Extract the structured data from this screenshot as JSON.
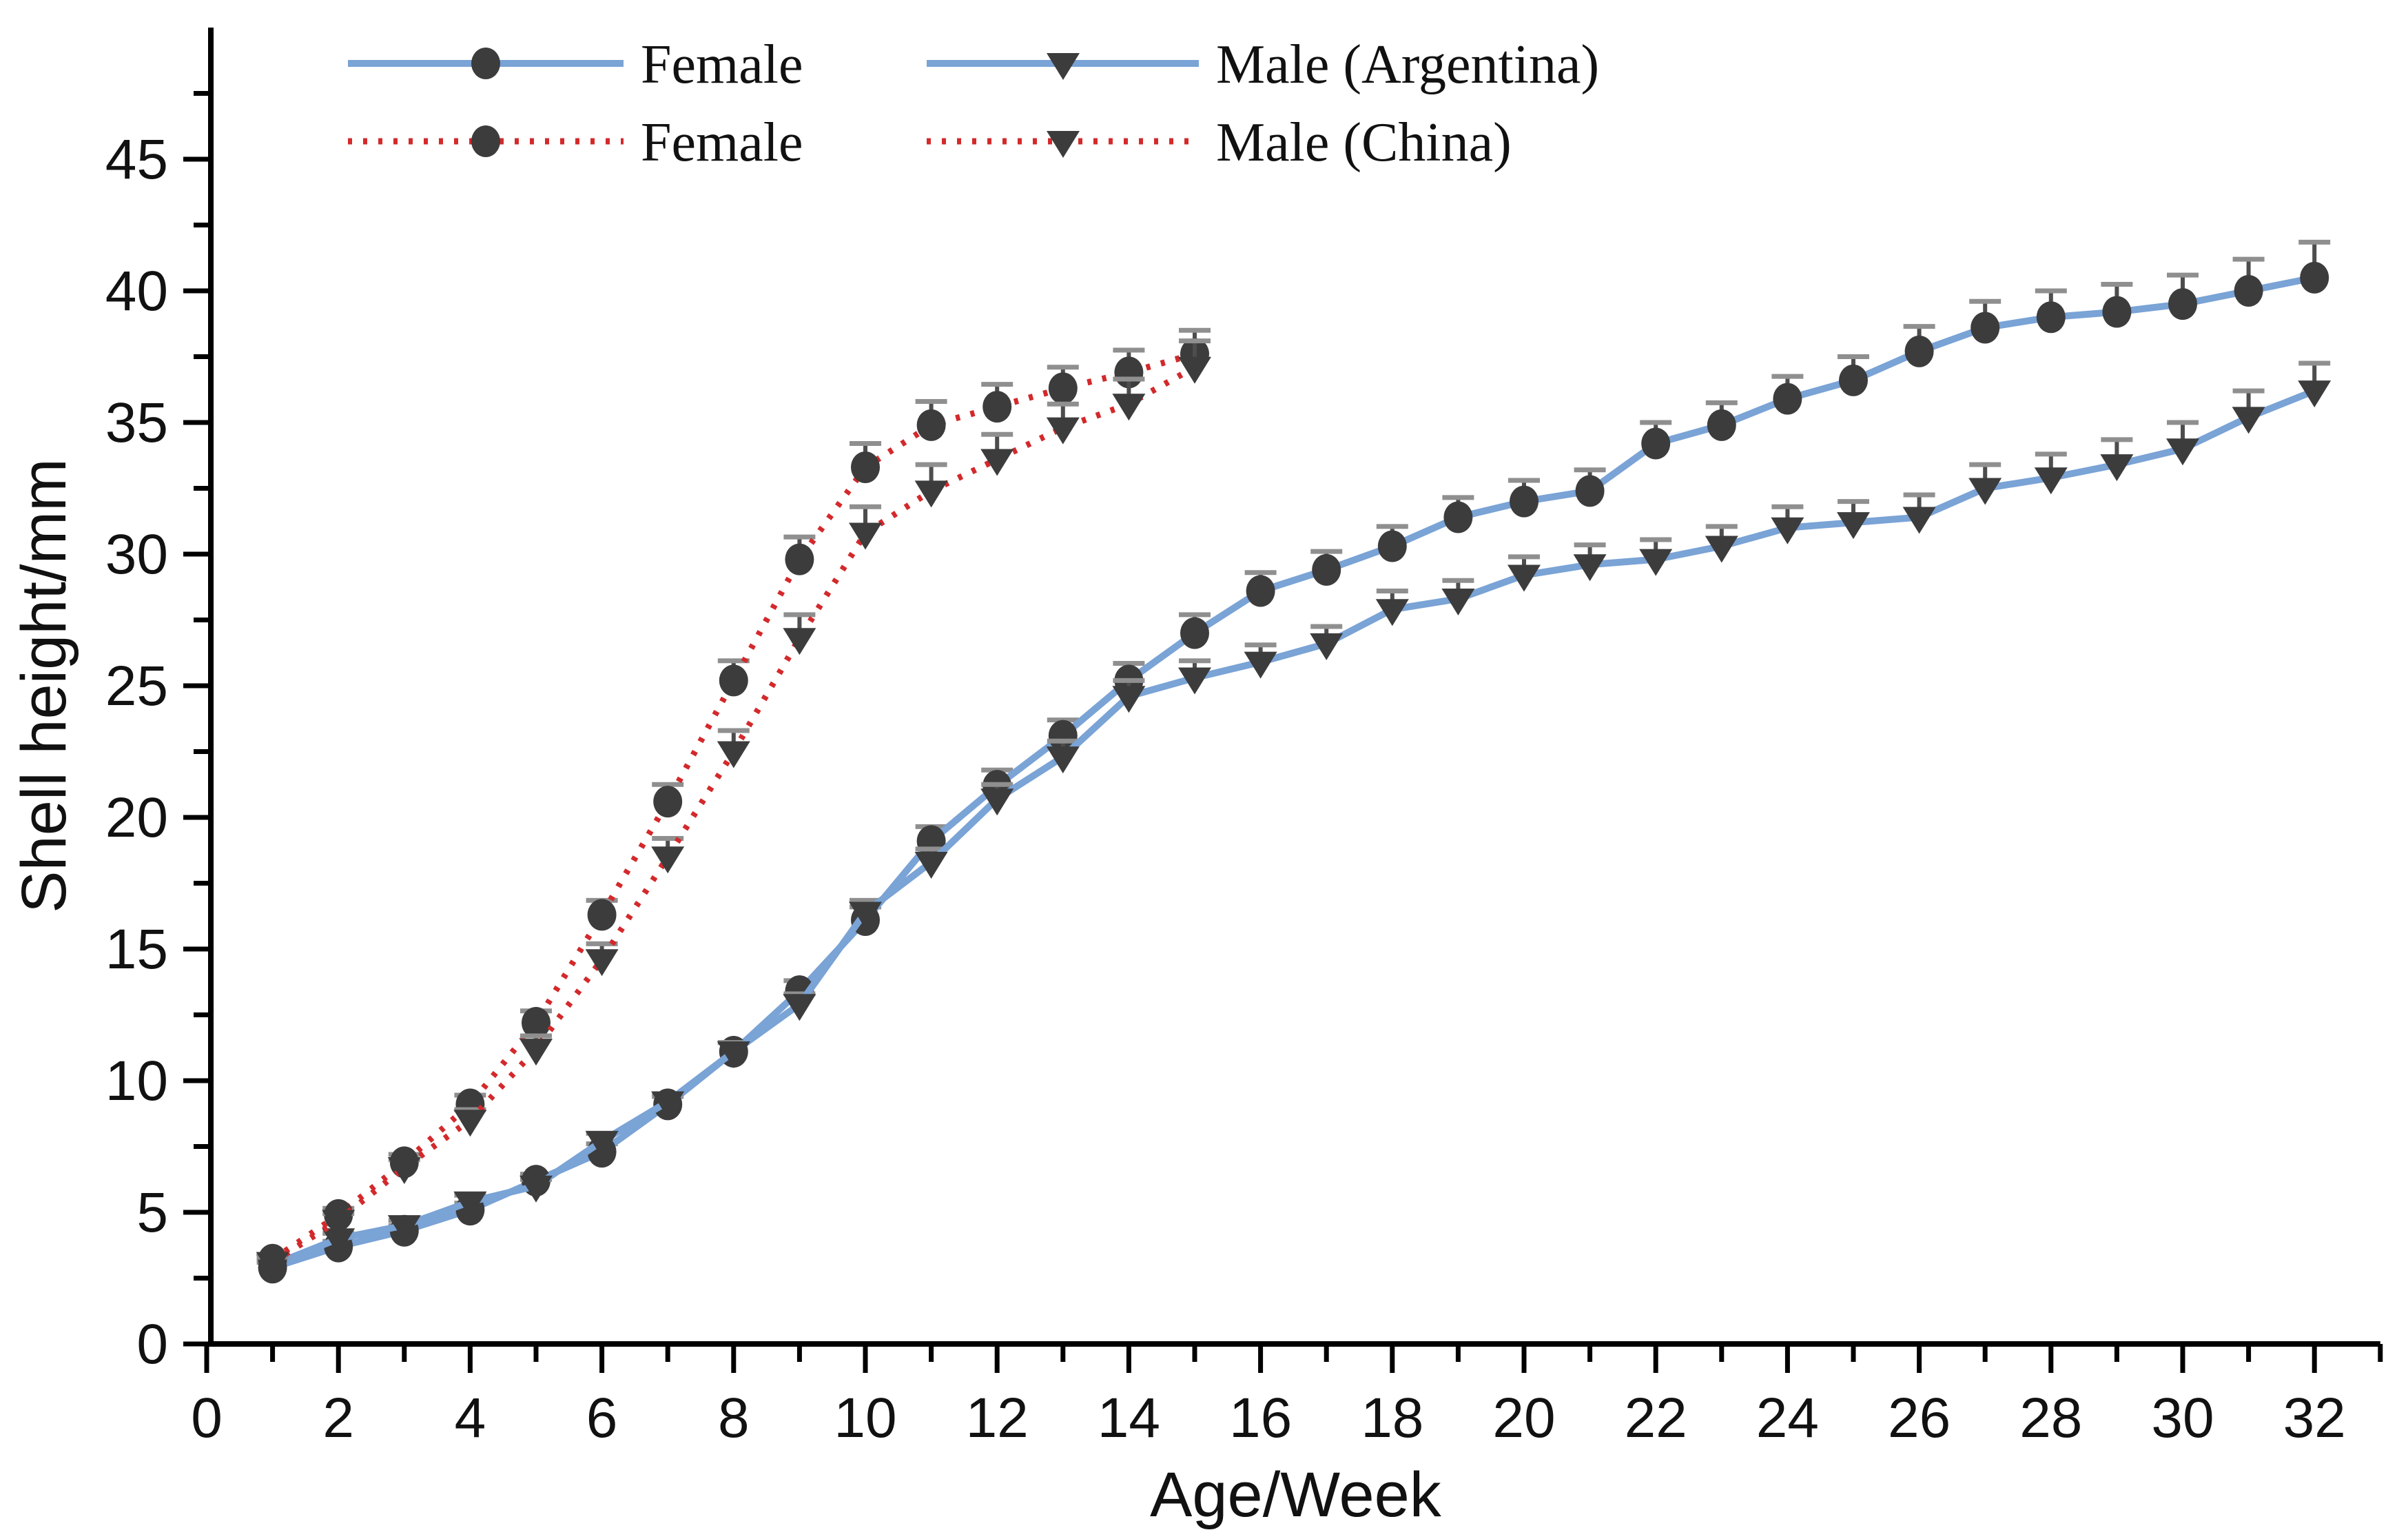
{
  "chart_data": {
    "type": "line",
    "title": "",
    "xlabel": "Age/Week",
    "ylabel": "Shell height/mm",
    "xlim": [
      0,
      33
    ],
    "ylim": [
      0,
      50
    ],
    "x_major_tick_labels": [
      "0",
      "2",
      "4",
      "6",
      "8",
      "10",
      "12",
      "14",
      "16",
      "18",
      "20",
      "22",
      "24",
      "26",
      "28",
      "30",
      "32"
    ],
    "x_major_tick_values": [
      0,
      2,
      4,
      6,
      8,
      10,
      12,
      14,
      16,
      18,
      20,
      22,
      24,
      26,
      28,
      30,
      32
    ],
    "x_minor_tick_values": [
      1,
      3,
      5,
      7,
      9,
      11,
      13,
      15,
      17,
      19,
      21,
      23,
      25,
      27,
      29,
      31,
      33
    ],
    "y_major_tick_labels": [
      "0",
      "5",
      "10",
      "15",
      "20",
      "25",
      "30",
      "35",
      "40",
      "45"
    ],
    "y_major_tick_values": [
      0,
      5,
      10,
      15,
      20,
      25,
      30,
      35,
      40,
      45
    ],
    "y_minor_tick_values": [
      2.5,
      7.5,
      12.5,
      17.5,
      22.5,
      27.5,
      32.5,
      37.5,
      42.5,
      47.5
    ],
    "grid": "off",
    "legend_position": "top-left-inside",
    "colors": {
      "argentina_line": "#7aa3d6",
      "china_line": "#d3292b",
      "marker": "#3c3c3c",
      "axis": "#000000",
      "error_stem": "#4d4d4d",
      "error_cap": "#8f8f8f"
    },
    "series": [
      {
        "name": "female-argentina",
        "legend_label": "Female",
        "group": "Argentina",
        "color": "#7aa3d6",
        "line_style": "solid",
        "marker": "circle",
        "x": [
          1,
          2,
          3,
          4,
          5,
          6,
          7,
          8,
          9,
          10,
          11,
          12,
          13,
          14,
          15,
          16,
          17,
          18,
          19,
          20,
          21,
          22,
          23,
          24,
          25,
          26,
          27,
          28,
          29,
          30,
          31,
          32
        ],
        "y": [
          2.9,
          3.7,
          4.3,
          5.1,
          6.2,
          7.3,
          9.1,
          11.1,
          13.4,
          16.1,
          19.1,
          21.2,
          23.1,
          25.2,
          27.0,
          28.6,
          29.4,
          30.3,
          31.4,
          32.0,
          32.4,
          34.2,
          34.9,
          35.9,
          36.6,
          37.7,
          38.6,
          39.0,
          39.2,
          39.5,
          40.0,
          40.5
        ],
        "err_up": [
          0.2,
          0.2,
          0.2,
          0.25,
          0.25,
          0.3,
          0.3,
          0.35,
          0.4,
          0.5,
          0.55,
          0.6,
          0.6,
          0.65,
          0.7,
          0.7,
          0.7,
          0.75,
          0.75,
          0.8,
          0.8,
          0.8,
          0.85,
          0.85,
          0.9,
          0.95,
          1.0,
          1.0,
          1.05,
          1.1,
          1.2,
          1.35
        ]
      },
      {
        "name": "male-argentina",
        "legend_label": "Male (Argentina)",
        "group": "Argentina",
        "color": "#7aa3d6",
        "line_style": "solid",
        "marker": "triangle-down",
        "x": [
          1,
          2,
          3,
          4,
          5,
          6,
          7,
          8,
          9,
          10,
          11,
          12,
          13,
          14,
          15,
          16,
          17,
          18,
          19,
          20,
          21,
          22,
          23,
          24,
          25,
          26,
          27,
          28,
          29,
          30,
          31,
          32
        ],
        "y": [
          3.0,
          4.0,
          4.5,
          5.4,
          6.0,
          7.7,
          9.2,
          11.1,
          12.9,
          16.4,
          18.3,
          20.7,
          22.3,
          24.6,
          25.3,
          25.9,
          26.6,
          27.9,
          28.3,
          29.2,
          29.6,
          29.8,
          30.3,
          31.0,
          31.2,
          31.4,
          32.5,
          32.9,
          33.4,
          34.0,
          35.2,
          36.2
        ],
        "err_up": [
          0.2,
          0.2,
          0.2,
          0.25,
          0.25,
          0.3,
          0.3,
          0.35,
          0.4,
          0.45,
          0.5,
          0.55,
          0.6,
          0.6,
          0.65,
          0.65,
          0.65,
          0.7,
          0.7,
          0.7,
          0.75,
          0.75,
          0.75,
          0.8,
          0.8,
          0.85,
          0.9,
          0.9,
          0.95,
          1.0,
          1.0,
          1.05
        ]
      },
      {
        "name": "female-china",
        "legend_label": "Female",
        "group": "China",
        "color": "#d3292b",
        "line_style": "dotted",
        "marker": "circle",
        "x": [
          1,
          2,
          3,
          4,
          5,
          6,
          7,
          8,
          9,
          10,
          11,
          12,
          13,
          14,
          15
        ],
        "y": [
          3.2,
          4.9,
          6.9,
          9.1,
          12.2,
          16.3,
          20.6,
          25.2,
          29.8,
          33.3,
          34.9,
          35.6,
          36.3,
          36.9,
          37.6
        ],
        "err_up": [
          0.2,
          0.25,
          0.3,
          0.35,
          0.45,
          0.55,
          0.65,
          0.75,
          0.85,
          0.9,
          0.9,
          0.85,
          0.8,
          0.85,
          0.9
        ]
      },
      {
        "name": "male-china",
        "legend_label": "Male (China)",
        "group": "China",
        "color": "#d3292b",
        "line_style": "dotted",
        "marker": "triangle-down",
        "x": [
          1,
          2,
          3,
          4,
          5,
          6,
          7,
          8,
          9,
          10,
          11,
          12,
          13,
          14,
          15
        ],
        "y": [
          3.1,
          4.7,
          6.7,
          8.5,
          11.2,
          14.6,
          18.5,
          22.5,
          26.8,
          30.8,
          32.4,
          33.6,
          34.8,
          35.7,
          37.1
        ],
        "err_up": [
          0.2,
          0.25,
          0.3,
          0.4,
          0.5,
          0.6,
          0.7,
          0.8,
          0.9,
          1.0,
          1.0,
          0.95,
          0.9,
          0.95,
          1.0
        ]
      }
    ],
    "legend_rows": [
      [
        {
          "series": "female-argentina",
          "label": "Female"
        },
        {
          "series": "male-argentina",
          "label": "Male (Argentina)"
        }
      ],
      [
        {
          "series": "female-china",
          "label": "Female"
        },
        {
          "series": "male-china",
          "label": "Male (China)"
        }
      ]
    ]
  }
}
